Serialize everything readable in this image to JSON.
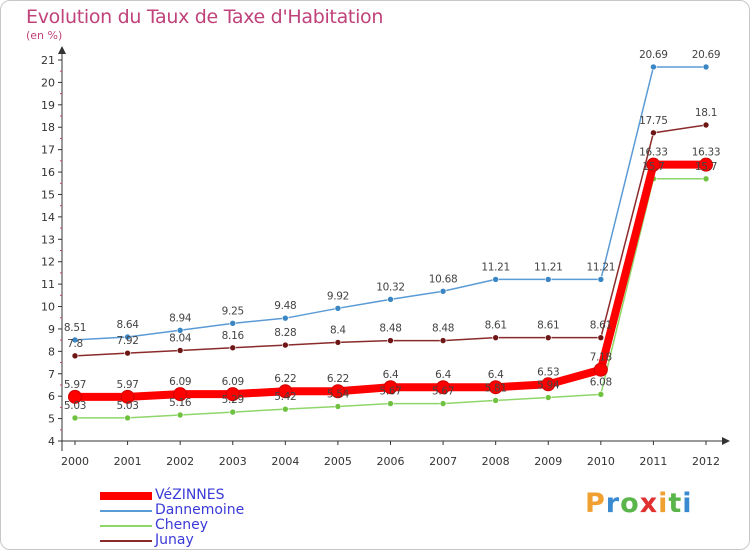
{
  "header": {
    "title": "Evolution du Taux de Taxe d'Habitation",
    "unit": "(en %)"
  },
  "logo": {
    "letters": [
      "P",
      "r",
      "o",
      "x",
      "i",
      "t",
      "i"
    ],
    "colors": [
      "#f0a030",
      "#3a8ad0",
      "#5ab54a",
      "#e03030",
      "#f0a030",
      "#5ab54a",
      "#3a8ad0"
    ]
  },
  "chart_data": {
    "type": "line",
    "x": [
      "2000",
      "2001",
      "2002",
      "2003",
      "2004",
      "2005",
      "2006",
      "2007",
      "2008",
      "2009",
      "2010",
      "2011",
      "2012"
    ],
    "ylim": [
      4,
      21
    ],
    "yticks": [
      "4",
      "5",
      "6",
      "7",
      "8",
      "9",
      "10",
      "11",
      "12",
      "13",
      "14",
      "15",
      "16",
      "17",
      "18",
      "19",
      "20",
      "21"
    ],
    "grid": false,
    "legend_position": "bottom-left",
    "series": [
      {
        "name": "Dannemoine",
        "color": "#5b9bd5",
        "marker": "#3a86c4",
        "values": [
          8.51,
          8.64,
          8.94,
          9.25,
          9.48,
          9.92,
          10.32,
          10.68,
          11.21,
          11.21,
          11.21,
          20.69,
          20.69
        ],
        "labels": [
          "8.51",
          "8.64",
          "8.94",
          "9.25",
          "9.48",
          "9.92",
          "10.32",
          "10.68",
          "11.21",
          "11.21",
          "11.21",
          "20.69",
          "20.69"
        ]
      },
      {
        "name": "Junay",
        "color": "#8b2a2a",
        "marker": "#6e1616",
        "values": [
          7.8,
          7.92,
          8.04,
          8.16,
          8.28,
          8.4,
          8.48,
          8.48,
          8.61,
          8.61,
          8.61,
          17.75,
          18.1
        ],
        "labels": [
          "7.8",
          "7.92",
          "8.04",
          "8.16",
          "8.28",
          "8.4",
          "8.48",
          "8.48",
          "8.61",
          "8.61",
          "8.61",
          "17.75",
          "18.1"
        ]
      },
      {
        "name": "Cheney",
        "color": "#8fd66a",
        "marker": "#6ec23f",
        "values": [
          5.03,
          5.03,
          5.16,
          5.29,
          5.42,
          5.54,
          5.67,
          5.67,
          5.81,
          5.94,
          6.08,
          15.7,
          15.7
        ],
        "labels": [
          "5.03",
          "5.03",
          "5.16",
          "5.29",
          "5.42",
          "5.54",
          "5.67",
          "5.67",
          "5.81",
          "5.94",
          "6.08",
          "15.7",
          "15.7"
        ]
      },
      {
        "name": "VéZINNES",
        "color": "#ff0000",
        "marker": "#ff0000",
        "values": [
          5.97,
          5.97,
          6.09,
          6.09,
          6.22,
          6.22,
          6.4,
          6.4,
          6.4,
          6.53,
          7.18,
          16.33,
          16.33
        ],
        "labels": [
          "5.97",
          "5.97",
          "6.09",
          "6.09",
          "6.22",
          "6.22",
          "6.4",
          "6.4",
          "6.4",
          "6.53",
          "7.18",
          "16.33",
          "16.33"
        ]
      }
    ],
    "legend_order": [
      "VéZINNES",
      "Dannemoine",
      "Cheney",
      "Junay"
    ]
  }
}
